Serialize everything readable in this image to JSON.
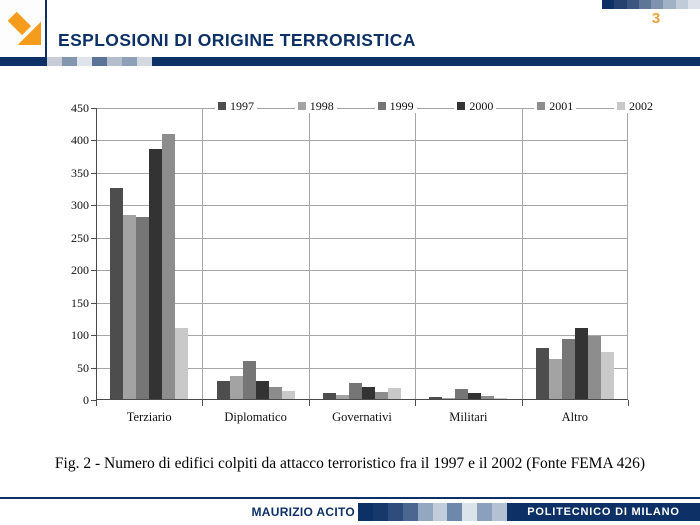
{
  "slide": {
    "title": "ESPLOSIONI DI ORIGINE TERRORISTICA",
    "page_number": "3",
    "caption": "Fig. 2 - Numero di edifici colpiti da attacco terroristico fra il 1997 e il 2002 (Fonte FEMA 426)"
  },
  "brand": {
    "navy": "#0d3166",
    "arrow_orange": "#f59c1c",
    "page_number_orange": "#e8a23c"
  },
  "footer": {
    "author": "MAURIZIO ACITO",
    "institution": "POLITECNICO DI MILANO"
  },
  "chart_data": {
    "type": "bar",
    "title": "",
    "xlabel": "",
    "ylabel": "",
    "categories": [
      "Terziario",
      "Diplomatico",
      "Governativi",
      "Militari",
      "Altro"
    ],
    "series": [
      {
        "name": "1997",
        "color": "#4d4d4d",
        "values": [
          325,
          28,
          10,
          3,
          78
        ]
      },
      {
        "name": "1998",
        "color": "#a3a3a3",
        "values": [
          283,
          35,
          6,
          2,
          62
        ]
      },
      {
        "name": "1999",
        "color": "#767676",
        "values": [
          280,
          58,
          25,
          15,
          92
        ]
      },
      {
        "name": "2000",
        "color": "#333333",
        "values": [
          385,
          28,
          18,
          10,
          110
        ]
      },
      {
        "name": "2001",
        "color": "#8d8d8d",
        "values": [
          408,
          18,
          11,
          5,
          97
        ]
      },
      {
        "name": "2002",
        "color": "#c9c9c9",
        "values": [
          110,
          13,
          17,
          2,
          73
        ]
      }
    ],
    "ylim": [
      0,
      450
    ],
    "ytick_step": 50,
    "grid": true,
    "legend_position": "top"
  }
}
